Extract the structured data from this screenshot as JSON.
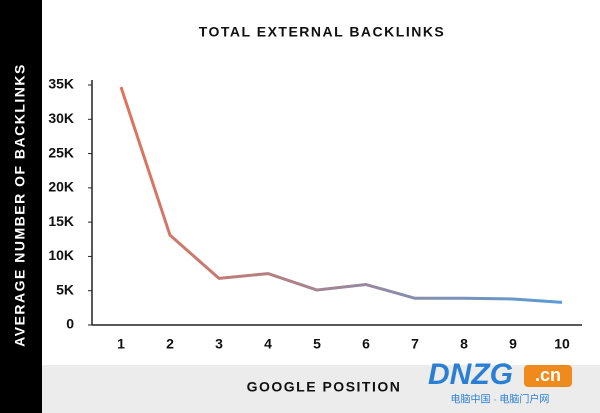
{
  "chart_data": {
    "type": "line",
    "title": "TOTAL EXTERNAL BACKLINKS",
    "x_label": "GOOGLE POSITION",
    "y_label": "AVERAGE NUMBER OF BACKLINKS",
    "categories": [
      "1",
      "2",
      "3",
      "4",
      "5",
      "6",
      "7",
      "8",
      "9",
      "10"
    ],
    "values": [
      34700,
      13100,
      6800,
      7500,
      5100,
      5900,
      3900,
      3900,
      3800,
      3300
    ],
    "colors": [
      "#e0735a",
      "#5b9bd5"
    ],
    "ylim": [
      0,
      35000
    ],
    "yticks": [
      0,
      {
        "value": 5000,
        "label": "5K"
      },
      {
        "value": 10000,
        "label": "10K"
      },
      {
        "value": 15000,
        "label": "15K"
      },
      {
        "value": 20000,
        "label": "20K"
      },
      {
        "value": 25000,
        "label": "25K"
      },
      {
        "value": 30000,
        "label": "30K"
      },
      {
        "value": 35000,
        "label": "35K"
      }
    ],
    "grid": false
  },
  "watermark": {
    "logo": "DNZG",
    "suffix": ".cn",
    "tagline": "电脑中国 · 电脑门户网"
  }
}
